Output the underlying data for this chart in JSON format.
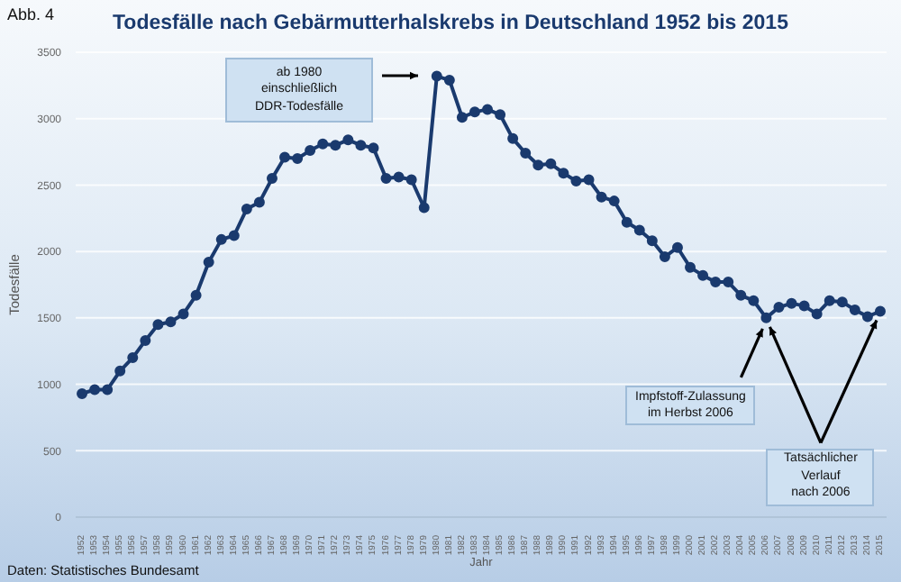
{
  "chart_data": {
    "type": "line",
    "title": "Todesfälle nach Gebärmutterhalskrebs in Deutschland 1952 bis 2015",
    "xlabel": "Jahr",
    "ylabel": "Todesfälle",
    "categories": [
      "1952",
      "1953",
      "1954",
      "1955",
      "1956",
      "1957",
      "1958",
      "1959",
      "1960",
      "1961",
      "1962",
      "1963",
      "1964",
      "1965",
      "1966",
      "1967",
      "1968",
      "1969",
      "1970",
      "1971",
      "1972",
      "1973",
      "1974",
      "1975",
      "1976",
      "1977",
      "1978",
      "1979",
      "1980",
      "1981",
      "1982",
      "1983",
      "1984",
      "1985",
      "1986",
      "1987",
      "1988",
      "1989",
      "1990",
      "1991",
      "1992",
      "1993",
      "1994",
      "1995",
      "1996",
      "1997",
      "1998",
      "1999",
      "2000",
      "2001",
      "2002",
      "2003",
      "2004",
      "2005",
      "2006",
      "2007",
      "2008",
      "2009",
      "2010",
      "2011",
      "2012",
      "2013",
      "2014",
      "2015"
    ],
    "series": [
      {
        "color": "#1a3a6e",
        "values": [
          930,
          960,
          960,
          1100,
          1200,
          1330,
          1450,
          1470,
          1530,
          1670,
          1920,
          2090,
          2120,
          2320,
          2370,
          2550,
          2710,
          2700,
          2760,
          2810,
          2800,
          2840,
          2800,
          2780,
          2550,
          2560,
          2540,
          2330,
          3320,
          3290,
          3010,
          3050,
          3070,
          3030,
          2850,
          2740,
          2650,
          2660,
          2590,
          2530,
          2540,
          2410,
          2380,
          2220,
          2160,
          2080,
          1960,
          2030,
          1880,
          1820,
          1770,
          1770,
          1670,
          1630,
          1500,
          1580,
          1610,
          1590,
          1530,
          1630,
          1620,
          1560,
          1510,
          1550
        ]
      }
    ],
    "ylim": [
      0,
      3500
    ],
    "yticks": [
      0,
      500,
      1000,
      1500,
      2000,
      2500,
      3000,
      3500
    ],
    "grid": "y",
    "marker": "circle",
    "line_style": "solid",
    "legend": false,
    "annotations": [
      "Abb. 4",
      "ab 1980\neinschließlich\nDDR-Todesfälle",
      {
        "text": "Impfstoff-Zulassung\nim Herbst 2006",
        "x": "2006",
        "y": 1500
      },
      {
        "text": "Tatsächlicher\nVerlauf\nnach 2006",
        "x": "2015",
        "y": 1550
      },
      "Daten: Statistisches Bundesamt"
    ]
  }
}
